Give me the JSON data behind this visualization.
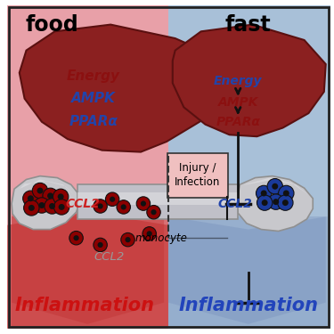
{
  "bg_left": "#e8a0a8",
  "bg_right": "#a8c0d8",
  "liver_color": "#8B2020",
  "liver_edge": "#5a1010",
  "bone_color": "#c8c8cc",
  "bone_highlight": "#e0e0e4",
  "bone_edge": "#909090",
  "shaft_color": "#c0c0c8",
  "monocyte_red_fill": "#8B0000",
  "monocyte_blue_fill": "#1a3a9a",
  "monocyte_black": "#111111",
  "text_dark_red": "#8B1010",
  "text_blue": "#2244aa",
  "text_black": "#111111",
  "inflammation_red": "#cc1111",
  "inflammation_blue": "#2244bb",
  "ccl2_red": "#cc2222",
  "ccl2_blue": "#2244aa",
  "ccl2_gray": "#999999",
  "title_food": "food",
  "title_fast": "fast",
  "label_energy_left": "Energy",
  "label_ampk_left": "AMPK",
  "label_ppara_left": "PPARα",
  "label_energy_right": "Energy",
  "label_ampk_right": "AMPK",
  "label_ppara_right": "PPARα",
  "label_injury": "Injury /\nInfection",
  "label_ccl2_left": "CCL2",
  "label_ccl2_right": "CCL2",
  "label_ccl2_bottom": "CCL2",
  "label_monocyte": "monocyte",
  "label_inflammation_left": "Inflammation",
  "label_inflammation_right": "Inflammation",
  "injury_box_color": "#f0c0c0",
  "arrow_color": "#111111",
  "divider_color": "#333333"
}
